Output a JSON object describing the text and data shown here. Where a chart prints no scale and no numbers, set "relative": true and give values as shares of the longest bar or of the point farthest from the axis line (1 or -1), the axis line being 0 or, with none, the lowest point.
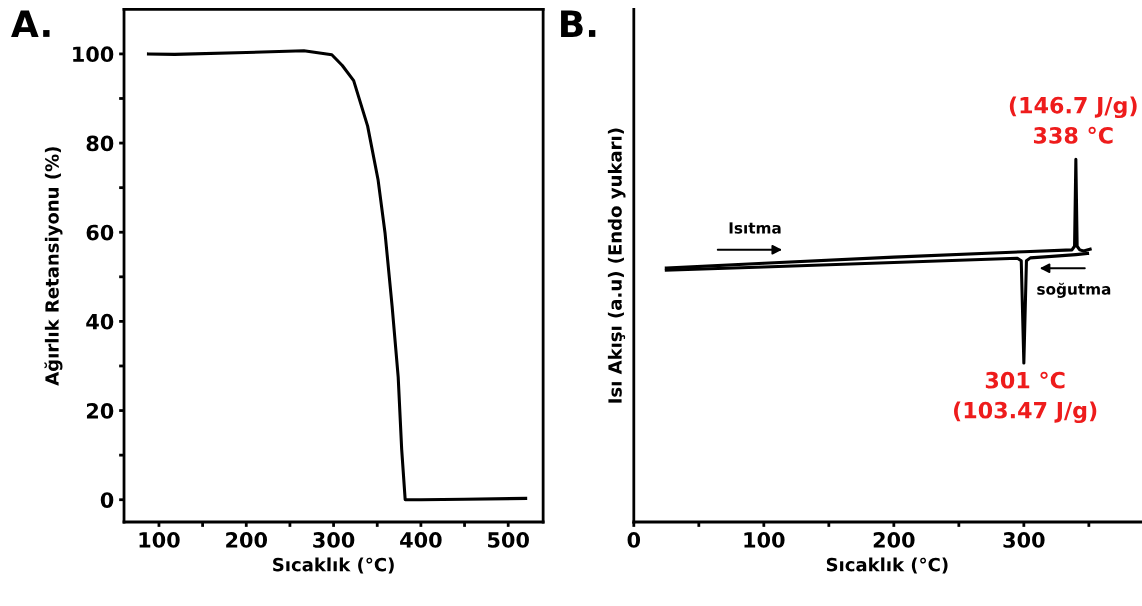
{
  "chart_data": [
    {
      "type": "line",
      "title": "A.",
      "xlabel": "Sıcaklık (°C)",
      "ylabel": "Ağırlık Retansiyonu (%)",
      "xlim": [
        60,
        540
      ],
      "xticks": [
        100,
        {
          "value": 150,
          "label": null
        },
        200,
        {
          "value": 250,
          "label": null
        },
        300,
        {
          "value": 350,
          "label": null
        },
        400,
        {
          "value": 450,
          "label": null
        },
        500
      ],
      "ylim": [
        -5,
        110
      ],
      "yticks": [
        0,
        {
          "value": 10,
          "label": null
        },
        20,
        {
          "value": 30,
          "label": null
        },
        40,
        {
          "value": 50,
          "label": null
        },
        60,
        {
          "value": 70,
          "label": null
        },
        80,
        {
          "value": 90,
          "label": null
        },
        100
      ],
      "series": [
        {
          "color": "#000000",
          "x": [
            88,
            118,
            200,
            266,
            298,
            310,
            323,
            339,
            351,
            359,
            367,
            374,
            378,
            382,
            400,
            450,
            520
          ],
          "values": [
            100,
            99.9,
            100.3,
            100.7,
            99.8,
            97.4,
            94,
            83.8,
            71.7,
            59.7,
            43.5,
            27.5,
            11.3,
            0,
            0,
            0.1,
            0.3
          ]
        }
      ]
    },
    {
      "type": "line",
      "title": "B.",
      "xlabel": "Sıcaklık (°C)",
      "ylabel": "Isı Akışı (a.u) (Endo yukarı)",
      "relative": true,
      "xlim": [
        0,
        390
      ],
      "xticks": [
        0,
        {
          "value": 50,
          "label": null
        },
        100,
        {
          "value": 150,
          "label": null
        },
        200,
        {
          "value": 250,
          "label": null
        },
        300,
        {
          "value": 350,
          "label": null
        }
      ],
      "series": [
        {
          "color": "#000000",
          "x": [
            25,
            100,
            200,
            300,
            337,
            339,
            340,
            341,
            343,
            346,
            351
          ],
          "values": [
            0.7,
            0.713,
            0.73,
            0.745,
            0.75,
            0.76,
            1,
            0.76,
            0.75,
            0.747,
            0.752
          ]
        },
        {
          "color": "#000000",
          "x": [
            349,
            340,
            305,
            302,
            300,
            298,
            295,
            200,
            100,
            25
          ],
          "values": [
            0.74,
            0.737,
            0.728,
            0.72,
            0.438,
            0.72,
            0.727,
            0.715,
            0.703,
            0.694
          ]
        }
      ],
      "annotations": [
        {
          "text": "(146.7 J/g)\n338 °C",
          "x": 338,
          "y": 1
        },
        {
          "text": "301 °C\n(103.47 J/g)",
          "x": 301,
          "y": 0.438
        },
        "Isıtma",
        "soğutma"
      ]
    }
  ]
}
